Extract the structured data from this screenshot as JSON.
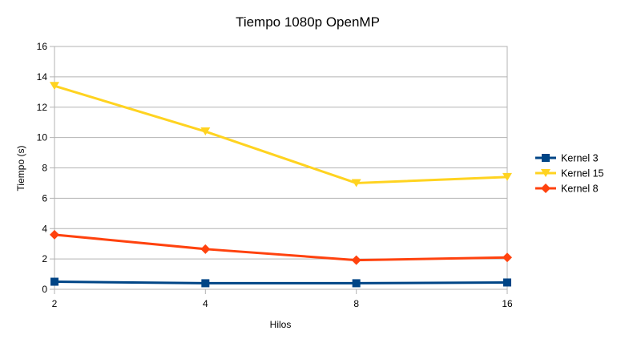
{
  "chart_data": {
    "type": "line",
    "title": "Tiempo 1080p OpenMP",
    "xlabel": "Hilos",
    "ylabel": "Tiempo (s)",
    "categories": [
      "2",
      "4",
      "8",
      "16"
    ],
    "ylim": [
      0,
      16
    ],
    "yticks": [
      0,
      2,
      4,
      6,
      8,
      10,
      12,
      14,
      16
    ],
    "grid": true,
    "legend_position": "right",
    "series": [
      {
        "name": "Kernel 3",
        "values": [
          0.5,
          0.4,
          0.4,
          0.45
        ],
        "color": "#004586",
        "marker": "square"
      },
      {
        "name": "Kernel 15",
        "values": [
          13.4,
          10.4,
          7.0,
          7.4
        ],
        "color": "#ffd320",
        "marker": "triangle-down"
      },
      {
        "name": "Kernel 8",
        "values": [
          3.6,
          2.65,
          1.92,
          2.1
        ],
        "color": "#ff420e",
        "marker": "diamond"
      }
    ]
  }
}
